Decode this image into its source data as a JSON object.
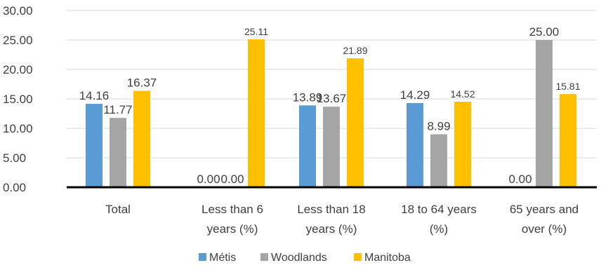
{
  "chart_data": {
    "type": "bar",
    "categories": [
      [
        "Total"
      ],
      [
        "Less than 6",
        "years (%)"
      ],
      [
        "Less than 18",
        "years (%)"
      ],
      [
        "18 to 64 years",
        "(%)"
      ],
      [
        "65 years and",
        "over (%)"
      ]
    ],
    "series": [
      {
        "name": "Métis",
        "color": "#5B9BD5",
        "values": [
          14.16,
          0.0,
          13.89,
          14.29,
          0.0
        ]
      },
      {
        "name": "Woodlands",
        "color": "#A5A5A5",
        "values": [
          11.77,
          0.0,
          13.67,
          8.99,
          25.0
        ]
      },
      {
        "name": "Manitoba",
        "color": "#FFC000",
        "values": [
          16.37,
          25.11,
          21.89,
          14.52,
          15.81
        ]
      }
    ],
    "data_labels": [
      [
        "14.16",
        "0.00",
        "13.89",
        "14.29",
        "0.00"
      ],
      [
        "11.77",
        "0.00",
        "13.67",
        "8.99",
        "25.00"
      ],
      [
        "16.37",
        "25.11",
        "21.89",
        "14.52",
        "15.81"
      ]
    ],
    "y_ticks": [
      "0.00",
      "5.00",
      "10.00",
      "15.00",
      "20.00",
      "25.00",
      "30.00"
    ],
    "ylim": [
      0,
      30
    ],
    "grid": true,
    "legend_position": "bottom",
    "title": "",
    "xlabel": "",
    "ylabel": ""
  }
}
